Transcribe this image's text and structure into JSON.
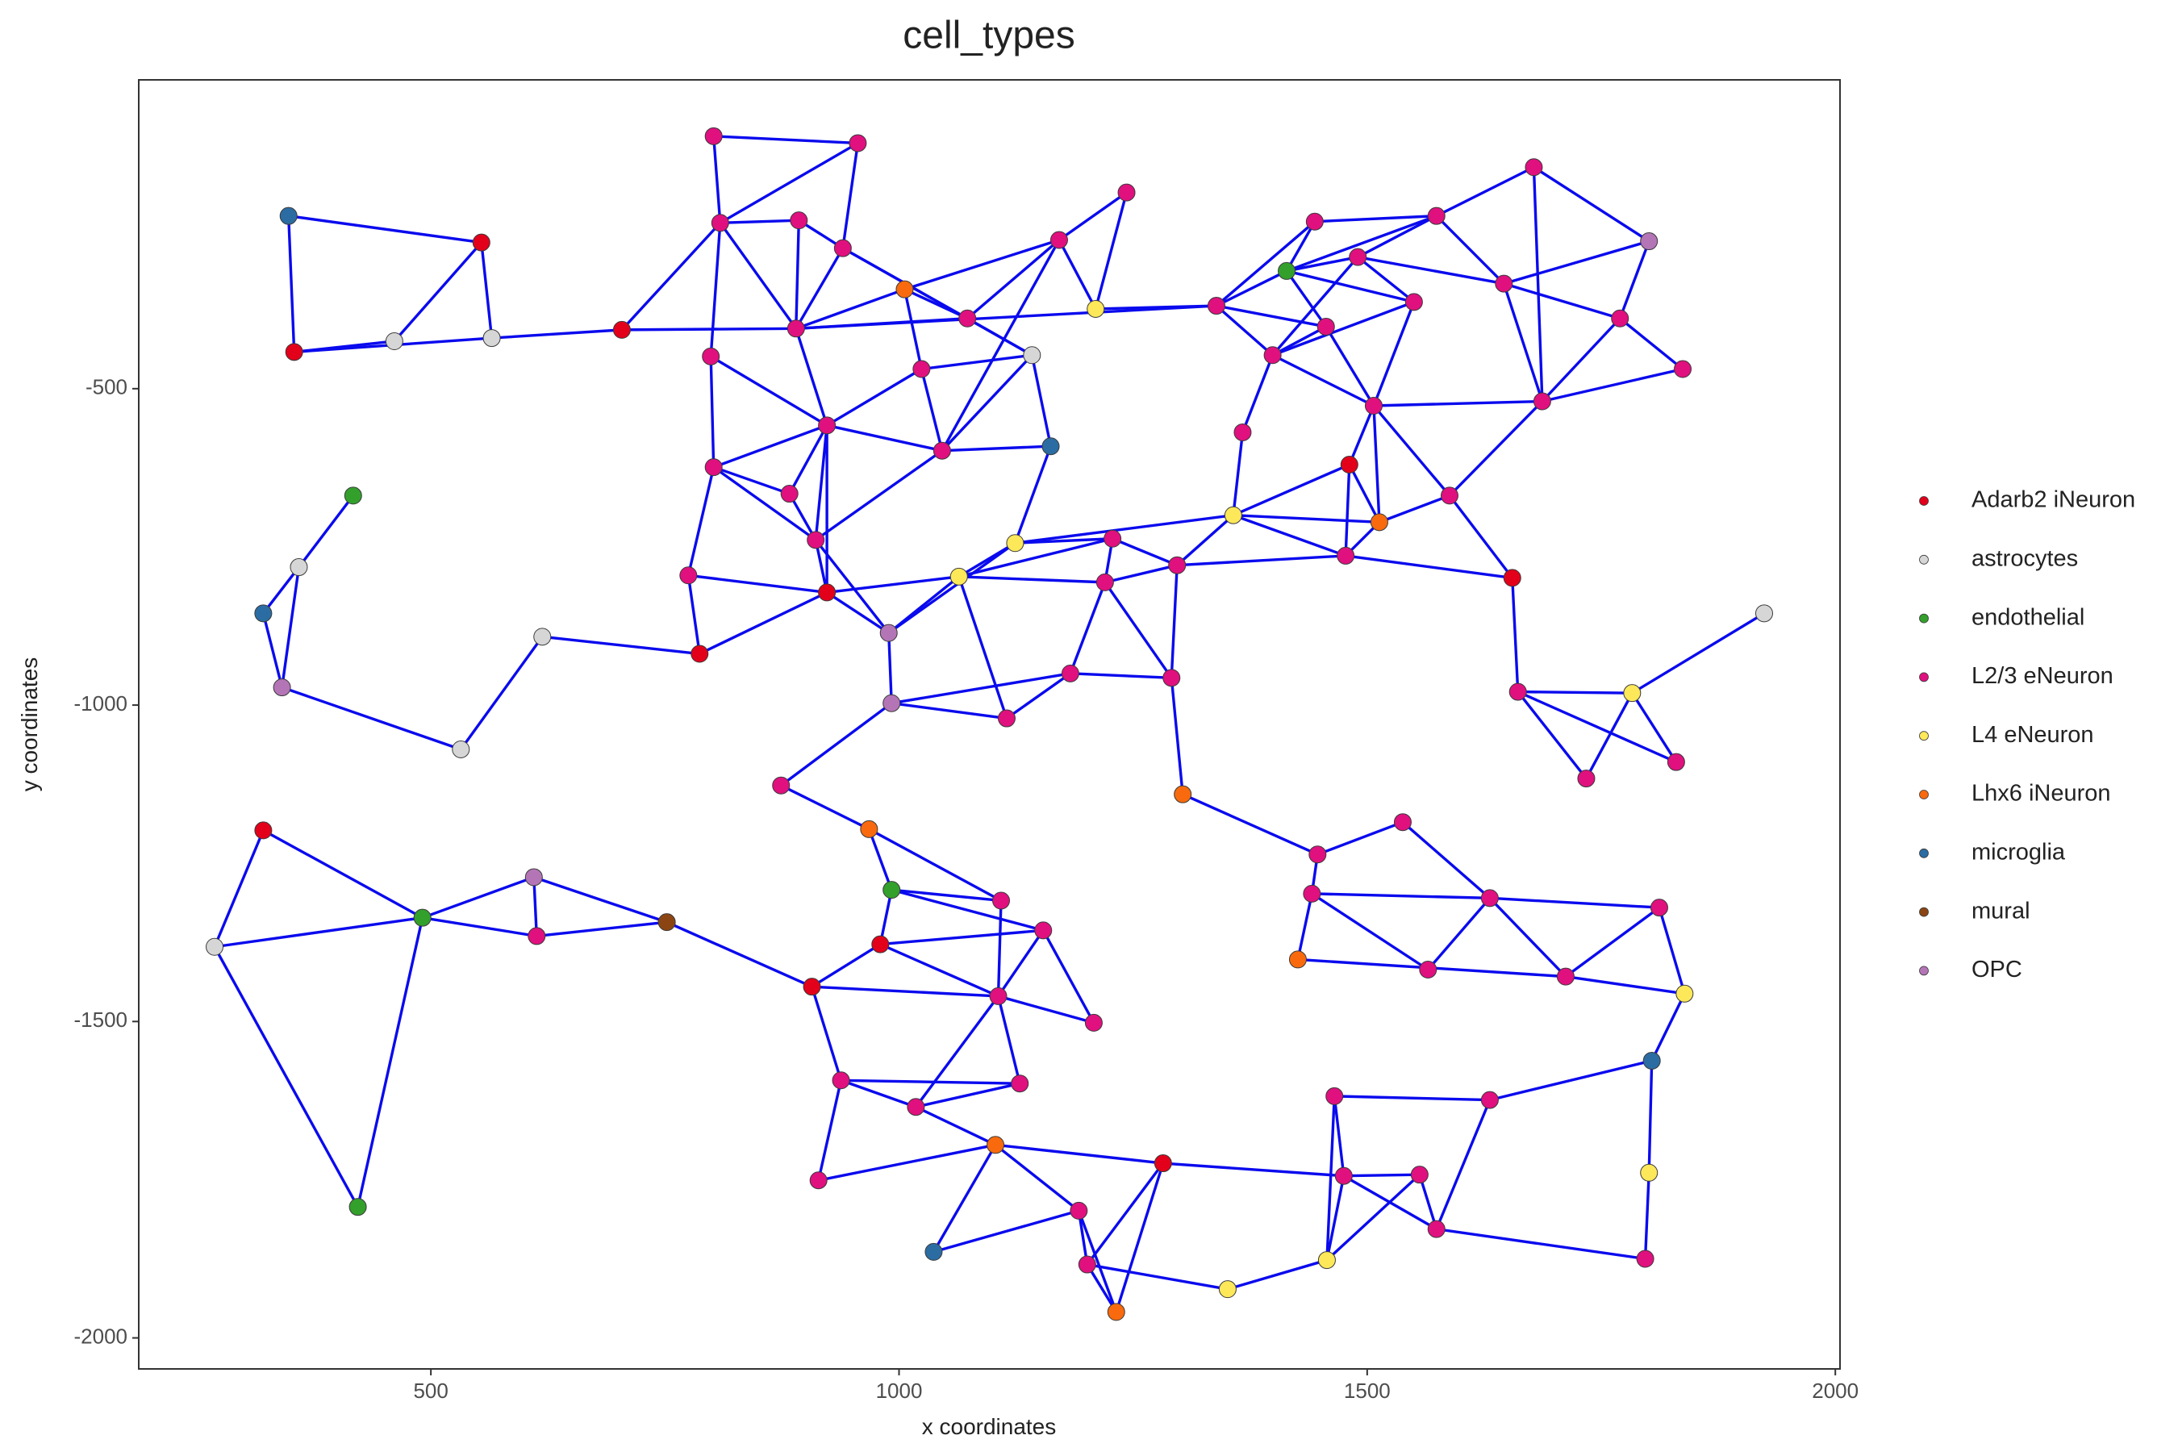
{
  "chart_data": {
    "type": "network",
    "title": "cell_types",
    "x_label": "x coordinates",
    "y_label": "y coordinates",
    "xlim": [
      188,
      2005
    ],
    "ylim": [
      -2049,
      -12
    ],
    "xticks": [
      500,
      1000,
      1500,
      2000
    ],
    "yticks": [
      -500,
      -1000,
      -1500,
      -2000
    ],
    "grid": false,
    "legend": "right",
    "edge_color": "#0a0aee",
    "series": [
      {
        "name": "Adarb2 iNeuron",
        "color": "#e3001b"
      },
      {
        "name": "astrocytes",
        "color": "#d6d6d6"
      },
      {
        "name": "endothelial",
        "color": "#33a02c"
      },
      {
        "name": "L2/3 eNeuron",
        "color": "#e0107f"
      },
      {
        "name": "L4 eNeuron",
        "color": "#fde85a"
      },
      {
        "name": "Lhx6 iNeuron",
        "color": "#f86a0d"
      },
      {
        "name": "microglia",
        "color": "#2b6ca3"
      },
      {
        "name": "mural",
        "color": "#8b4513"
      },
      {
        "name": "OPC",
        "color": "#b475b6"
      }
    ],
    "x": [
      348,
      554,
      354,
      461,
      565,
      704,
      417,
      359,
      321,
      341,
      532,
      619,
      787,
      802,
      956,
      809,
      893,
      940,
      890,
      799,
      1006,
      1073,
      1171,
      1243,
      1210,
      1142,
      1024,
      923,
      1046,
      1162,
      802,
      883,
      911,
      775,
      923,
      989,
      992,
      1064,
      1124,
      1228,
      1220,
      1297,
      1183,
      1115,
      1291,
      874,
      1303,
      1339,
      1444,
      1414,
      1490,
      1574,
      1678,
      1801,
      1646,
      1550,
      1456,
      1399,
      1770,
      1837,
      1507,
      1687,
      1367,
      1481,
      1588,
      1357,
      1513,
      1477,
      1655,
      1924,
      1661,
      1783,
      1734,
      1830,
      321,
      269,
      491,
      610,
      613,
      752,
      422,
      968,
      992,
      1109,
      980,
      1154,
      907,
      1106,
      1208,
      938,
      1129,
      1018,
      1103,
      914,
      1037,
      1192,
      1201,
      1282,
      1232,
      1351,
      1447,
      1538,
      1441,
      1631,
      1426,
      1565,
      1712,
      1812,
      1839,
      1804,
      1631,
      1465,
      1475,
      1556,
      1574,
      1457,
      1801,
      1797
    ],
    "y": [
      -227,
      -269,
      -442,
      -425,
      -420,
      -407,
      -669,
      -782,
      -855,
      -972,
      -1070,
      -892,
      -919,
      -101,
      -112,
      -238,
      -234,
      -278,
      -405,
      -449,
      -343,
      -389,
      -265,
      -190,
      -374,
      -447,
      -469,
      -558,
      -598,
      -591,
      -624,
      -666,
      -739,
      -795,
      -822,
      -886,
      -997,
      -797,
      -744,
      -737,
      -806,
      -779,
      -950,
      -1021,
      -957,
      -1127,
      -1141,
      -369,
      -236,
      -314,
      -292,
      -227,
      -150,
      -267,
      -334,
      -363,
      -402,
      -447,
      -389,
      -469,
      -527,
      -520,
      -569,
      -620,
      -669,
      -700,
      -711,
      -764,
      -799,
      -855,
      -979,
      -981,
      -1116,
      -1090,
      -1198,
      -1382,
      -1336,
      -1272,
      -1365,
      -1343,
      -1793,
      -1196,
      -1292,
      -1309,
      -1378,
      -1356,
      -1445,
      -1460,
      -1502,
      -1593,
      -1598,
      -1635,
      -1695,
      -1751,
      -1864,
      -1799,
      -1884,
      -1724,
      -1959,
      -1923,
      -1236,
      -1185,
      -1298,
      -1305,
      -1402,
      -1418,
      -1429,
      -1320,
      -1456,
      -1562,
      -1624,
      -1618,
      -1744,
      -1742,
      -1828,
      -1877,
      -1739,
      -1875
    ],
    "cell_type": [
      "microglia",
      "Adarb2 iNeuron",
      "Adarb2 iNeuron",
      "astrocytes",
      "astrocytes",
      "Adarb2 iNeuron",
      "endothelial",
      "astrocytes",
      "microglia",
      "OPC",
      "astrocytes",
      "astrocytes",
      "Adarb2 iNeuron",
      "L2/3 eNeuron",
      "L2/3 eNeuron",
      "L2/3 eNeuron",
      "L2/3 eNeuron",
      "L2/3 eNeuron",
      "L2/3 eNeuron",
      "L2/3 eNeuron",
      "Lhx6 iNeuron",
      "L2/3 eNeuron",
      "L2/3 eNeuron",
      "L2/3 eNeuron",
      "L4 eNeuron",
      "astrocytes",
      "L2/3 eNeuron",
      "L2/3 eNeuron",
      "L2/3 eNeuron",
      "microglia",
      "L2/3 eNeuron",
      "L2/3 eNeuron",
      "L2/3 eNeuron",
      "L2/3 eNeuron",
      "Adarb2 iNeuron",
      "OPC",
      "OPC",
      "L4 eNeuron",
      "L4 eNeuron",
      "L2/3 eNeuron",
      "L2/3 eNeuron",
      "L2/3 eNeuron",
      "L2/3 eNeuron",
      "L2/3 eNeuron",
      "L2/3 eNeuron",
      "L2/3 eNeuron",
      "Lhx6 iNeuron",
      "L2/3 eNeuron",
      "L2/3 eNeuron",
      "endothelial",
      "L2/3 eNeuron",
      "L2/3 eNeuron",
      "L2/3 eNeuron",
      "OPC",
      "L2/3 eNeuron",
      "L2/3 eNeuron",
      "L2/3 eNeuron",
      "L2/3 eNeuron",
      "L2/3 eNeuron",
      "L2/3 eNeuron",
      "L2/3 eNeuron",
      "L2/3 eNeuron",
      "L2/3 eNeuron",
      "Adarb2 iNeuron",
      "L2/3 eNeuron",
      "L4 eNeuron",
      "Lhx6 iNeuron",
      "L2/3 eNeuron",
      "Adarb2 iNeuron",
      "astrocytes",
      "L2/3 eNeuron",
      "L4 eNeuron",
      "L2/3 eNeuron",
      "L2/3 eNeuron",
      "Adarb2 iNeuron",
      "astrocytes",
      "endothelial",
      "OPC",
      "L2/3 eNeuron",
      "mural",
      "endothelial",
      "Lhx6 iNeuron",
      "endothelial",
      "L2/3 eNeuron",
      "Adarb2 iNeuron",
      "L2/3 eNeuron",
      "Adarb2 iNeuron",
      "L2/3 eNeuron",
      "L2/3 eNeuron",
      "L2/3 eNeuron",
      "L2/3 eNeuron",
      "L2/3 eNeuron",
      "Lhx6 iNeuron",
      "L2/3 eNeuron",
      "microglia",
      "L2/3 eNeuron",
      "L2/3 eNeuron",
      "Adarb2 iNeuron",
      "Lhx6 iNeuron",
      "L4 eNeuron",
      "L2/3 eNeuron",
      "L2/3 eNeuron",
      "L2/3 eNeuron",
      "L2/3 eNeuron",
      "Lhx6 iNeuron",
      "L2/3 eNeuron",
      "L2/3 eNeuron",
      "L2/3 eNeuron",
      "L4 eNeuron",
      "microglia",
      "L2/3 eNeuron",
      "L2/3 eNeuron",
      "L2/3 eNeuron",
      "L2/3 eNeuron",
      "L2/3 eNeuron",
      "L4 eNeuron",
      "L4 eNeuron",
      "L2/3 eNeuron"
    ],
    "edges": [
      [
        0,
        1
      ],
      [
        0,
        2
      ],
      [
        1,
        3
      ],
      [
        1,
        4
      ],
      [
        2,
        3
      ],
      [
        2,
        4
      ],
      [
        4,
        5
      ],
      [
        5,
        15
      ],
      [
        5,
        18
      ],
      [
        6,
        7
      ],
      [
        7,
        8
      ],
      [
        7,
        9
      ],
      [
        8,
        9
      ],
      [
        9,
        10
      ],
      [
        10,
        11
      ],
      [
        11,
        12
      ],
      [
        12,
        34
      ],
      [
        13,
        14
      ],
      [
        13,
        15
      ],
      [
        14,
        15
      ],
      [
        14,
        17
      ],
      [
        15,
        16
      ],
      [
        15,
        18
      ],
      [
        16,
        17
      ],
      [
        16,
        18
      ],
      [
        17,
        18
      ],
      [
        17,
        21
      ],
      [
        17,
        25
      ],
      [
        15,
        19
      ],
      [
        18,
        20
      ],
      [
        18,
        21
      ],
      [
        18,
        27
      ],
      [
        18,
        47
      ],
      [
        19,
        27
      ],
      [
        19,
        30
      ],
      [
        20,
        21
      ],
      [
        20,
        22
      ],
      [
        20,
        26
      ],
      [
        21,
        22
      ],
      [
        21,
        25
      ],
      [
        22,
        23
      ],
      [
        22,
        24
      ],
      [
        22,
        28
      ],
      [
        23,
        24
      ],
      [
        24,
        47
      ],
      [
        25,
        26
      ],
      [
        25,
        29
      ],
      [
        25,
        28
      ],
      [
        26,
        27
      ],
      [
        26,
        28
      ],
      [
        27,
        28
      ],
      [
        27,
        30
      ],
      [
        27,
        31
      ],
      [
        27,
        32
      ],
      [
        27,
        34
      ],
      [
        28,
        29
      ],
      [
        28,
        32
      ],
      [
        29,
        38
      ],
      [
        30,
        31
      ],
      [
        30,
        32
      ],
      [
        30,
        33
      ],
      [
        31,
        32
      ],
      [
        32,
        34
      ],
      [
        32,
        35
      ],
      [
        33,
        34
      ],
      [
        33,
        12
      ],
      [
        34,
        37
      ],
      [
        34,
        35
      ],
      [
        35,
        36
      ],
      [
        35,
        38
      ],
      [
        35,
        37
      ],
      [
        36,
        43
      ],
      [
        36,
        42
      ],
      [
        36,
        45
      ],
      [
        37,
        38
      ],
      [
        37,
        39
      ],
      [
        37,
        40
      ],
      [
        37,
        43
      ],
      [
        38,
        39
      ],
      [
        39,
        40
      ],
      [
        39,
        41
      ],
      [
        40,
        41
      ],
      [
        40,
        42
      ],
      [
        40,
        44
      ],
      [
        41,
        65
      ],
      [
        41,
        44
      ],
      [
        42,
        43
      ],
      [
        42,
        44
      ],
      [
        44,
        46
      ],
      [
        46,
        100
      ],
      [
        38,
        65
      ],
      [
        41,
        67
      ],
      [
        67,
        68
      ],
      [
        47,
        48
      ],
      [
        47,
        49
      ],
      [
        47,
        57
      ],
      [
        47,
        56
      ],
      [
        48,
        49
      ],
      [
        48,
        51
      ],
      [
        49,
        50
      ],
      [
        49,
        51
      ],
      [
        49,
        55
      ],
      [
        49,
        56
      ],
      [
        50,
        51
      ],
      [
        50,
        54
      ],
      [
        50,
        55
      ],
      [
        50,
        57
      ],
      [
        51,
        54
      ],
      [
        51,
        52
      ],
      [
        52,
        53
      ],
      [
        52,
        61
      ],
      [
        54,
        53
      ],
      [
        54,
        58
      ],
      [
        53,
        58
      ],
      [
        58,
        59
      ],
      [
        58,
        61
      ],
      [
        59,
        61
      ],
      [
        54,
        61
      ],
      [
        55,
        57
      ],
      [
        55,
        60
      ],
      [
        56,
        57
      ],
      [
        56,
        60
      ],
      [
        57,
        60
      ],
      [
        57,
        62
      ],
      [
        60,
        61
      ],
      [
        60,
        63
      ],
      [
        60,
        64
      ],
      [
        60,
        66
      ],
      [
        62,
        65
      ],
      [
        63,
        65
      ],
      [
        63,
        67
      ],
      [
        63,
        66
      ],
      [
        64,
        66
      ],
      [
        64,
        68
      ],
      [
        65,
        66
      ],
      [
        65,
        67
      ],
      [
        66,
        67
      ],
      [
        68,
        70
      ],
      [
        70,
        71
      ],
      [
        70,
        72
      ],
      [
        70,
        73
      ],
      [
        71,
        72
      ],
      [
        71,
        73
      ],
      [
        71,
        69
      ],
      [
        61,
        64
      ],
      [
        74,
        75
      ],
      [
        74,
        76
      ],
      [
        75,
        76
      ],
      [
        75,
        80
      ],
      [
        76,
        80
      ],
      [
        76,
        77
      ],
      [
        76,
        78
      ],
      [
        77,
        78
      ],
      [
        77,
        79
      ],
      [
        78,
        79
      ],
      [
        79,
        86
      ],
      [
        45,
        81
      ],
      [
        81,
        82
      ],
      [
        81,
        83
      ],
      [
        82,
        83
      ],
      [
        82,
        84
      ],
      [
        82,
        85
      ],
      [
        84,
        85
      ],
      [
        84,
        86
      ],
      [
        84,
        87
      ],
      [
        83,
        87
      ],
      [
        85,
        87
      ],
      [
        85,
        88
      ],
      [
        86,
        87
      ],
      [
        86,
        89
      ],
      [
        87,
        88
      ],
      [
        87,
        90
      ],
      [
        87,
        91
      ],
      [
        89,
        90
      ],
      [
        89,
        91
      ],
      [
        89,
        93
      ],
      [
        90,
        91
      ],
      [
        91,
        92
      ],
      [
        92,
        93
      ],
      [
        92,
        94
      ],
      [
        92,
        95
      ],
      [
        92,
        97
      ],
      [
        94,
        95
      ],
      [
        95,
        96
      ],
      [
        95,
        98
      ],
      [
        96,
        97
      ],
      [
        96,
        98
      ],
      [
        97,
        98
      ],
      [
        96,
        99
      ],
      [
        97,
        112
      ],
      [
        99,
        115
      ],
      [
        115,
        111
      ],
      [
        115,
        112
      ],
      [
        115,
        113
      ],
      [
        111,
        112
      ],
      [
        111,
        110
      ],
      [
        112,
        113
      ],
      [
        112,
        114
      ],
      [
        113,
        114
      ],
      [
        114,
        110
      ],
      [
        114,
        117
      ],
      [
        110,
        109
      ],
      [
        109,
        108
      ],
      [
        109,
        116
      ],
      [
        116,
        117
      ],
      [
        108,
        107
      ],
      [
        106,
        108
      ],
      [
        106,
        107
      ],
      [
        106,
        103
      ],
      [
        104,
        106
      ],
      [
        105,
        102
      ],
      [
        105,
        103
      ],
      [
        103,
        102
      ],
      [
        103,
        101
      ],
      [
        103,
        107
      ],
      [
        102,
        100
      ],
      [
        100,
        101
      ],
      [
        102,
        104
      ]
    ]
  }
}
